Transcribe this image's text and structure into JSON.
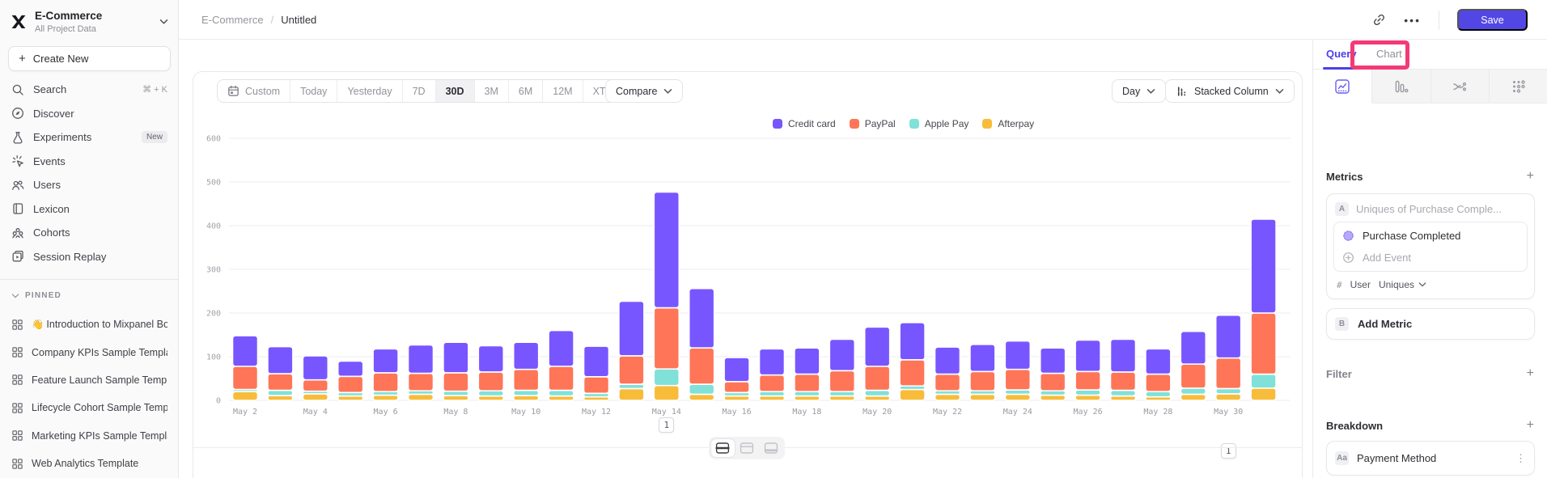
{
  "colors": {
    "brand_purple": "#5247e5",
    "annotation_pink": "#f43a76",
    "series": {
      "Credit card": "#7856FF",
      "PayPal": "#FF7557",
      "Apple Pay": "#80E1D9",
      "Afterpay": "#F8BC3B"
    }
  },
  "sidebar": {
    "project": "E-Commerce",
    "subtitle": "All Project Data",
    "create_label": "Create New",
    "items": [
      {
        "icon": "search",
        "label": "Search",
        "right": "⌘ + K"
      },
      {
        "icon": "discover",
        "label": "Discover"
      },
      {
        "icon": "experiments",
        "label": "Experiments",
        "badge": "New"
      },
      {
        "icon": "events",
        "label": "Events"
      },
      {
        "icon": "users",
        "label": "Users"
      },
      {
        "icon": "lexicon",
        "label": "Lexicon"
      },
      {
        "icon": "cohorts",
        "label": "Cohorts"
      },
      {
        "icon": "replay",
        "label": "Session Replay"
      }
    ],
    "pinned_label": "PINNED",
    "pinned": [
      {
        "emoji": "👋",
        "label": "Introduction to Mixpanel Board"
      },
      {
        "label": "Company KPIs Sample Template"
      },
      {
        "label": "Feature Launch Sample Template"
      },
      {
        "label": "Lifecycle Cohort Sample Template"
      },
      {
        "label": "Marketing KPIs Sample Template"
      },
      {
        "label": "Web Analytics Template"
      }
    ]
  },
  "topbar": {
    "breadcrumb_project": "E-Commerce",
    "breadcrumb_sep": "/",
    "breadcrumb_page": "Untitled",
    "save_label": "Save"
  },
  "toolbar": {
    "ranges": [
      "Custom",
      "Today",
      "Yesterday",
      "7D",
      "30D",
      "3M",
      "6M",
      "12M",
      "XTD"
    ],
    "active_range": "30D",
    "compare_label": "Compare",
    "granularity_label": "Day",
    "chart_type_label": "Stacked Column"
  },
  "right_panel": {
    "tab_query": "Query",
    "tab_chart": "Chart",
    "chart_tabs": [
      "insights",
      "funnels",
      "flows",
      "retention"
    ],
    "metrics_title": "Metrics",
    "metric_a_badge": "A",
    "metric_a_placeholder": "Uniques of Purchase Comple...",
    "event_name": "Purchase Completed",
    "add_event_label": "Add Event",
    "agg_hash": "#",
    "agg_entity": "User",
    "agg_type": "Uniques",
    "metric_b_badge": "B",
    "add_metric_label": "Add Metric",
    "filter_title": "Filter",
    "breakdown_title": "Breakdown",
    "breakdown_badge": "Aa",
    "breakdown_item": "Payment Method"
  },
  "annotations": [
    {
      "label": "1",
      "date": "May 14"
    },
    {
      "label": "1",
      "date": "May 30"
    }
  ],
  "chart_data": {
    "type": "bar",
    "stacked": true,
    "title": "",
    "xlabel": "",
    "ylabel": "",
    "ylim": [
      0,
      600
    ],
    "yticks": [
      0,
      100,
      200,
      300,
      400,
      500,
      600
    ],
    "grid": true,
    "legend_position": "top",
    "x_tick_every": 2,
    "categories": [
      "May 2",
      "May 3",
      "May 4",
      "May 5",
      "May 6",
      "May 7",
      "May 8",
      "May 9",
      "May 10",
      "May 11",
      "May 12",
      "May 13",
      "May 14",
      "May 15",
      "May 16",
      "May 17",
      "May 18",
      "May 19",
      "May 20",
      "May 21",
      "May 22",
      "May 23",
      "May 24",
      "May 25",
      "May 26",
      "May 27",
      "May 28",
      "May 29",
      "May 30",
      "May 31"
    ],
    "series": [
      {
        "name": "Credit card",
        "values": [
          70,
          62,
          55,
          35,
          55,
          65,
          70,
          60,
          62,
          82,
          70,
          125,
          265,
          136,
          55,
          60,
          60,
          72,
          90,
          85,
          62,
          62,
          65,
          58,
          72,
          75,
          58,
          75,
          98,
          215
        ]
      },
      {
        "name": "PayPal",
        "values": [
          53,
          38,
          26,
          37,
          43,
          40,
          42,
          43,
          48,
          55,
          38,
          65,
          140,
          83,
          25,
          38,
          40,
          48,
          55,
          60,
          38,
          44,
          47,
          40,
          42,
          42,
          40,
          55,
          70,
          140
        ]
      },
      {
        "name": "Apple Pay",
        "values": [
          5,
          12,
          6,
          8,
          8,
          8,
          10,
          12,
          12,
          13,
          8,
          10,
          38,
          23,
          8,
          10,
          10,
          10,
          13,
          8,
          8,
          8,
          10,
          10,
          12,
          13,
          12,
          14,
          12,
          32
        ]
      },
      {
        "name": "Afterpay",
        "values": [
          20,
          11,
          15,
          10,
          12,
          14,
          11,
          10,
          11,
          10,
          8,
          27,
          34,
          14,
          10,
          10,
          10,
          10,
          10,
          25,
          14,
          14,
          14,
          12,
          12,
          10,
          8,
          14,
          15,
          28
        ]
      }
    ]
  }
}
